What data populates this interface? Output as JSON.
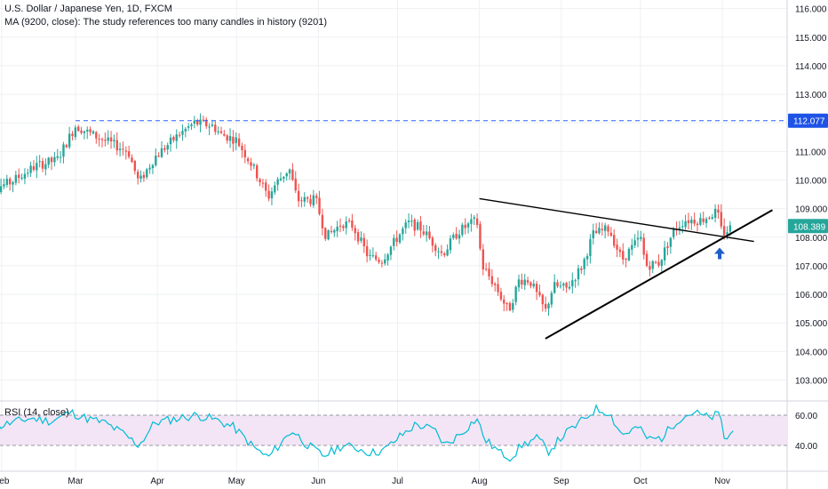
{
  "legend": {
    "title": "U.S. Dollar / Japanese Yen, 1D, FXCM",
    "ma_note": "MA (9200, close): The study references too many candles in history (9201)",
    "rsi": "RSI (14, close)"
  },
  "colors": {
    "up": "#26a69a",
    "down": "#ef5350",
    "dashed_level": "#2962ff",
    "rsi_line": "#00bcd4",
    "rsi_band": "#f3e5f5",
    "last_price_label": "#26a69a",
    "level_label": "#1e53e5",
    "arrow": "#1e5ec9"
  },
  "chart_data": [
    {
      "type": "candlestick",
      "title": "U.S. Dollar / Japanese Yen, 1D, FXCM",
      "x_tick_labels": [
        "Feb",
        "Mar",
        "Apr",
        "May",
        "Jun",
        "Jul",
        "Aug",
        "Sep",
        "Oct",
        "Nov"
      ],
      "y_tick_labels": [
        "116.000",
        "115.000",
        "114.000",
        "113.000",
        "112.000",
        "111.000",
        "110.000",
        "109.000",
        "108.000",
        "107.000",
        "106.000",
        "105.000",
        "104.000",
        "103.000"
      ],
      "ylim": [
        102.3,
        116.3
      ],
      "grid": true,
      "horizontal_level": {
        "label": "112.077",
        "value": 112.077,
        "style": "dashed"
      },
      "last_price": {
        "label": "108.389",
        "value": 108.389
      },
      "trendlines": [
        {
          "name": "upper",
          "from": {
            "date": "2019-08-01",
            "value": 109.35
          },
          "to": {
            "date": "2019-11-13",
            "value": 107.85
          }
        },
        {
          "name": "lower",
          "from": {
            "date": "2019-08-26",
            "value": 104.45
          },
          "to": {
            "date": "2019-11-20",
            "value": 108.95
          }
        }
      ],
      "path_points": [
        {
          "date": "2019-01-25",
          "value": 109.6
        },
        {
          "date": "2019-02-04",
          "value": 109.9
        },
        {
          "date": "2019-02-14",
          "value": 110.5
        },
        {
          "date": "2019-02-22",
          "value": 110.7
        },
        {
          "date": "2019-03-01",
          "value": 111.9
        },
        {
          "date": "2019-03-07",
          "value": 111.6
        },
        {
          "date": "2019-03-14",
          "value": 111.3
        },
        {
          "date": "2019-03-21",
          "value": 111.0
        },
        {
          "date": "2019-03-25",
          "value": 109.9
        },
        {
          "date": "2019-03-31",
          "value": 110.8
        },
        {
          "date": "2019-04-08",
          "value": 111.5
        },
        {
          "date": "2019-04-15",
          "value": 112.0
        },
        {
          "date": "2019-04-22",
          "value": 111.9
        },
        {
          "date": "2019-04-25",
          "value": 111.6
        },
        {
          "date": "2019-05-01",
          "value": 111.4
        },
        {
          "date": "2019-05-07",
          "value": 110.5
        },
        {
          "date": "2019-05-13",
          "value": 109.4
        },
        {
          "date": "2019-05-16",
          "value": 109.9
        },
        {
          "date": "2019-05-21",
          "value": 110.4
        },
        {
          "date": "2019-05-24",
          "value": 109.3
        },
        {
          "date": "2019-05-31",
          "value": 109.3
        },
        {
          "date": "2019-06-04",
          "value": 108.0
        },
        {
          "date": "2019-06-10",
          "value": 108.5
        },
        {
          "date": "2019-06-14",
          "value": 108.4
        },
        {
          "date": "2019-06-20",
          "value": 107.3
        },
        {
          "date": "2019-06-25",
          "value": 107.2
        },
        {
          "date": "2019-07-01",
          "value": 108.0
        },
        {
          "date": "2019-07-05",
          "value": 108.5
        },
        {
          "date": "2019-07-10",
          "value": 108.3
        },
        {
          "date": "2019-07-18",
          "value": 107.4
        },
        {
          "date": "2019-07-24",
          "value": 108.2
        },
        {
          "date": "2019-07-31",
          "value": 108.6
        },
        {
          "date": "2019-08-02",
          "value": 107.0
        },
        {
          "date": "2019-08-07",
          "value": 106.3
        },
        {
          "date": "2019-08-12",
          "value": 105.4
        },
        {
          "date": "2019-08-16",
          "value": 106.5
        },
        {
          "date": "2019-08-20",
          "value": 106.5
        },
        {
          "date": "2019-08-26",
          "value": 105.4
        },
        {
          "date": "2019-08-29",
          "value": 106.3
        },
        {
          "date": "2019-09-03",
          "value": 106.2
        },
        {
          "date": "2019-09-09",
          "value": 107.0
        },
        {
          "date": "2019-09-13",
          "value": 108.1
        },
        {
          "date": "2019-09-19",
          "value": 108.3
        },
        {
          "date": "2019-09-24",
          "value": 107.2
        },
        {
          "date": "2019-10-01",
          "value": 108.0
        },
        {
          "date": "2019-10-03",
          "value": 107.0
        },
        {
          "date": "2019-10-08",
          "value": 107.1
        },
        {
          "date": "2019-10-14",
          "value": 108.3
        },
        {
          "date": "2019-10-18",
          "value": 108.6
        },
        {
          "date": "2019-10-24",
          "value": 108.6
        },
        {
          "date": "2019-10-30",
          "value": 108.9
        },
        {
          "date": "2019-11-01",
          "value": 108.1
        },
        {
          "date": "2019-11-05",
          "value": 108.4
        }
      ]
    },
    {
      "type": "line",
      "title": "RSI (14, close)",
      "y_tick_labels": [
        "60.00",
        "40.00"
      ],
      "band": [
        40,
        60
      ],
      "ylim": [
        20,
        80
      ],
      "path_points": [
        {
          "date": "2019-01-25",
          "value": 50
        },
        {
          "date": "2019-02-05",
          "value": 55
        },
        {
          "date": "2019-02-12",
          "value": 58
        },
        {
          "date": "2019-02-20",
          "value": 56
        },
        {
          "date": "2019-02-27",
          "value": 62
        },
        {
          "date": "2019-03-05",
          "value": 58
        },
        {
          "date": "2019-03-12",
          "value": 55
        },
        {
          "date": "2019-03-19",
          "value": 48
        },
        {
          "date": "2019-03-25",
          "value": 40
        },
        {
          "date": "2019-03-31",
          "value": 55
        },
        {
          "date": "2019-04-09",
          "value": 58
        },
        {
          "date": "2019-04-16",
          "value": 60
        },
        {
          "date": "2019-04-23",
          "value": 57
        },
        {
          "date": "2019-04-30",
          "value": 52
        },
        {
          "date": "2019-05-08",
          "value": 38
        },
        {
          "date": "2019-05-13",
          "value": 32
        },
        {
          "date": "2019-05-17",
          "value": 40
        },
        {
          "date": "2019-05-22",
          "value": 50
        },
        {
          "date": "2019-05-28",
          "value": 40
        },
        {
          "date": "2019-06-03",
          "value": 33
        },
        {
          "date": "2019-06-10",
          "value": 40
        },
        {
          "date": "2019-06-16",
          "value": 38
        },
        {
          "date": "2019-06-21",
          "value": 35
        },
        {
          "date": "2019-06-26",
          "value": 37
        },
        {
          "date": "2019-07-02",
          "value": 46
        },
        {
          "date": "2019-07-08",
          "value": 54
        },
        {
          "date": "2019-07-15",
          "value": 50
        },
        {
          "date": "2019-07-19",
          "value": 40
        },
        {
          "date": "2019-07-25",
          "value": 48
        },
        {
          "date": "2019-07-31",
          "value": 58
        },
        {
          "date": "2019-08-03",
          "value": 44
        },
        {
          "date": "2019-08-09",
          "value": 35
        },
        {
          "date": "2019-08-13",
          "value": 32
        },
        {
          "date": "2019-08-17",
          "value": 40
        },
        {
          "date": "2019-08-23",
          "value": 45
        },
        {
          "date": "2019-08-27",
          "value": 36
        },
        {
          "date": "2019-09-02",
          "value": 47
        },
        {
          "date": "2019-09-08",
          "value": 55
        },
        {
          "date": "2019-09-14",
          "value": 64
        },
        {
          "date": "2019-09-19",
          "value": 62
        },
        {
          "date": "2019-09-24",
          "value": 47
        },
        {
          "date": "2019-09-30",
          "value": 52
        },
        {
          "date": "2019-10-04",
          "value": 44
        },
        {
          "date": "2019-10-09",
          "value": 45
        },
        {
          "date": "2019-10-15",
          "value": 57
        },
        {
          "date": "2019-10-21",
          "value": 62
        },
        {
          "date": "2019-10-27",
          "value": 58
        },
        {
          "date": "2019-10-31",
          "value": 61
        },
        {
          "date": "2019-11-02",
          "value": 43
        },
        {
          "date": "2019-11-06",
          "value": 51
        }
      ]
    }
  ]
}
